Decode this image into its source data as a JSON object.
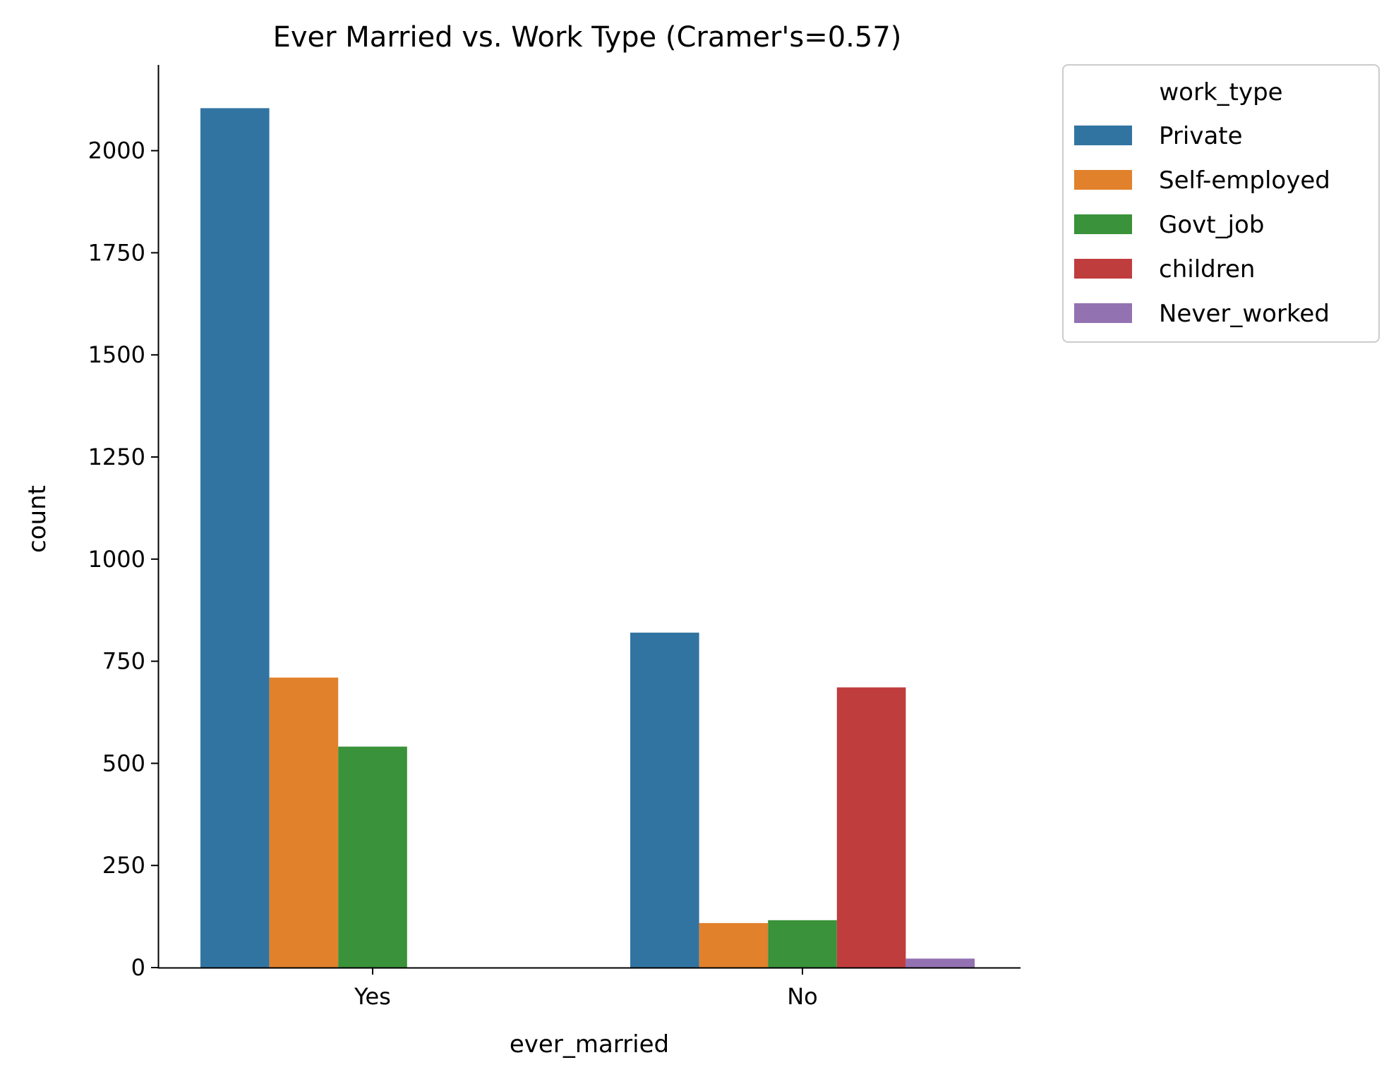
{
  "chart_data": {
    "type": "bar",
    "title": "Ever Married vs. Work Type (Cramer's=0.57)",
    "xlabel": "ever_married",
    "ylabel": "count",
    "categories": [
      "Yes",
      "No"
    ],
    "ylim": [
      0,
      2210
    ],
    "yticks": [
      0,
      250,
      500,
      750,
      1000,
      1250,
      1500,
      1750,
      2000
    ],
    "grid": false,
    "legend": {
      "title": "work_type",
      "placement": "outside-right-top"
    },
    "series": [
      {
        "name": "Private",
        "color": "#3274a1",
        "values": [
          2104,
          820
        ]
      },
      {
        "name": "Self-employed",
        "color": "#e1812c",
        "values": [
          710,
          109
        ]
      },
      {
        "name": "Govt_job",
        "color": "#3a923a",
        "values": [
          541,
          116
        ]
      },
      {
        "name": "children",
        "color": "#c03d3e",
        "values": [
          0,
          686
        ]
      },
      {
        "name": "Never_worked",
        "color": "#9372b2",
        "values": [
          0,
          22
        ]
      }
    ]
  }
}
